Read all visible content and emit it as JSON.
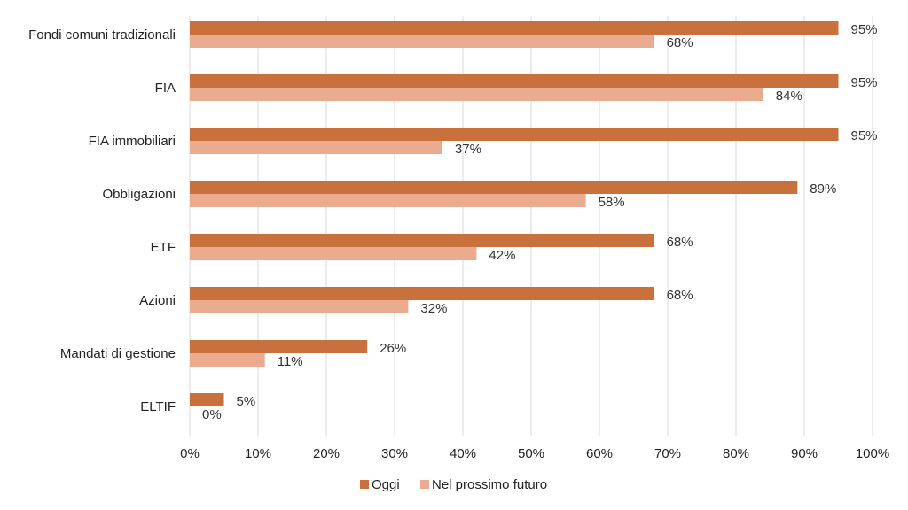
{
  "chart_data": {
    "type": "bar",
    "orientation": "horizontal",
    "categories": [
      "Fondi comuni tradizionali",
      "FIA",
      "FIA immobiliari",
      "Obbligazioni",
      "ETF",
      "Azioni",
      "Mandati di gestione",
      "ELTIF"
    ],
    "series": [
      {
        "name": "Oggi",
        "color": "#c9713c",
        "values": [
          95,
          95,
          95,
          89,
          68,
          68,
          26,
          5
        ]
      },
      {
        "name": "Nel prossimo futuro",
        "color": "#eaab8f",
        "values": [
          68,
          84,
          37,
          58,
          42,
          32,
          11,
          0
        ]
      }
    ],
    "xlim": [
      0,
      100
    ],
    "xticks": [
      0,
      10,
      20,
      30,
      40,
      50,
      60,
      70,
      80,
      90,
      100
    ],
    "tick_format": "%",
    "grid": true,
    "legend_position": "bottom",
    "title": "",
    "xlabel": "",
    "ylabel": ""
  }
}
